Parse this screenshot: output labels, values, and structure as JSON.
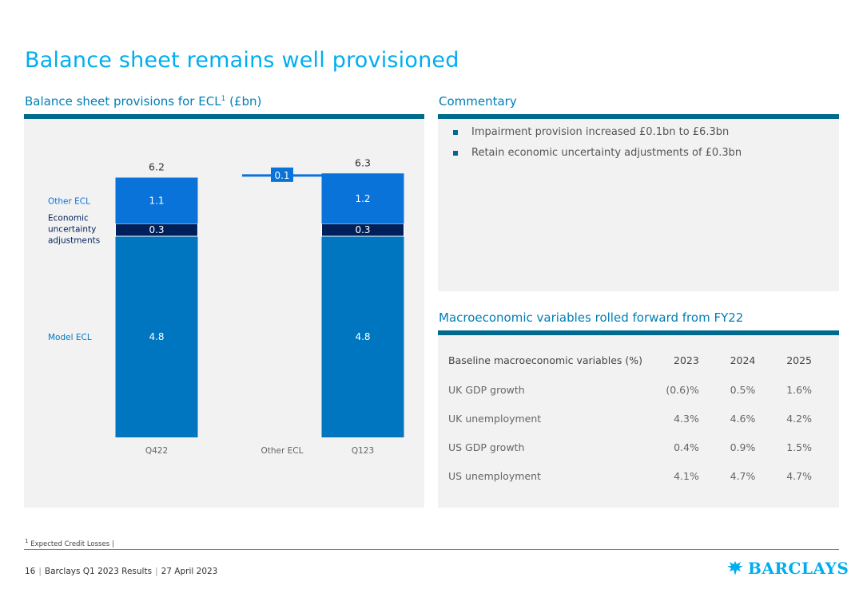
{
  "page": {
    "title": "Balance sheet remains well provisioned"
  },
  "left_section": {
    "heading": "Balance sheet provisions for ECL",
    "heading_sup": "1",
    "heading_suffix": " (£bn)"
  },
  "commentary": {
    "heading": "Commentary",
    "bullets": [
      "Impairment provision increased £0.1bn to £6.3bn",
      "Retain economic uncertainty adjustments of £0.3bn"
    ]
  },
  "macro": {
    "heading": "Macroeconomic variables rolled forward from FY22",
    "columns": [
      "Baseline macroeconomic variables (%)",
      "2023",
      "2024",
      "2025"
    ],
    "rows": [
      [
        "UK GDP growth",
        "(0.6)%",
        "0.5%",
        "1.6%"
      ],
      [
        "UK unemployment",
        "4.3%",
        "4.6%",
        "4.2%"
      ],
      [
        "US GDP growth",
        "0.4%",
        "0.9%",
        "1.5%"
      ],
      [
        "US unemployment",
        "4.1%",
        "4.7%",
        "4.7%"
      ]
    ]
  },
  "chart_data": {
    "type": "bar",
    "subtype": "stacked-waterfall",
    "title": "Balance sheet provisions for ECL (£bn)",
    "categories": [
      "Q422",
      "Other ECL",
      "Q123"
    ],
    "series": [
      {
        "name": "Model ECL",
        "values": [
          4.8,
          null,
          4.8
        ],
        "labels": [
          "4.8",
          "",
          "4.8"
        ],
        "color": "#0076c0"
      },
      {
        "name": "Economic uncertainty adjustments",
        "values": [
          0.3,
          null,
          0.3
        ],
        "labels": [
          "0.3",
          "",
          "0.3"
        ],
        "color": "#00205b"
      },
      {
        "name": "Other ECL",
        "values": [
          1.1,
          0.1,
          1.2
        ],
        "labels": [
          "1.1",
          "0.1",
          "1.2"
        ],
        "color": "#0a73d9"
      }
    ],
    "totals": [
      6.2,
      null,
      6.3
    ],
    "total_labels": [
      "6.2",
      "",
      "6.3"
    ],
    "legend": [
      "Other ECL",
      "Economic uncertainty adjustments",
      "Model ECL"
    ],
    "legend_placement": "left",
    "ylim": [
      0,
      6.8
    ]
  },
  "footnote": {
    "sup": "1",
    "text": " Expected Credit Losses |"
  },
  "footer": {
    "page_number": "16",
    "report": "Barclays Q1 2023 Results",
    "date": "27 April 2023"
  },
  "brand": {
    "name": "BARCLAYS",
    "accent": "#00aeef",
    "dark": "#006a8e"
  }
}
